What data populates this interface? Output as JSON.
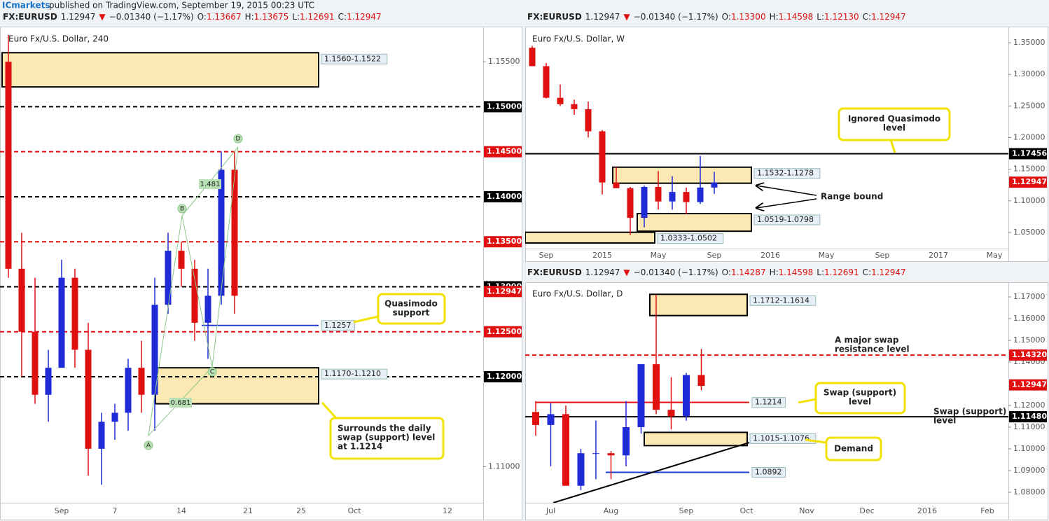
{
  "publisher": {
    "brand": "ICmarkets",
    "text": "published on TradingView.com, September 19, 2015 00:23 UTC"
  },
  "chart_data": [
    {
      "type": "candlestick",
      "title": "Euro Fx/U.S. Dollar, 240",
      "header": {
        "symbol": "FX:EURUSD",
        "last": "1.12947",
        "arrow": "▼",
        "change": "−0.01340 (−1.17%)",
        "ohlc": [
          {
            "k": "O:",
            "v": "1.13667"
          },
          {
            "k": "H:",
            "v": "1.13675"
          },
          {
            "k": "L:",
            "v": "1.12691"
          },
          {
            "k": "C:",
            "v": "1.12947"
          }
        ]
      },
      "up_color": "#1f2bd6",
      "down_color": "#e01010",
      "categories": [
        null,
        null,
        null,
        null,
        "Sep",
        null,
        null,
        null,
        "7",
        null,
        null,
        null,
        null,
        "14",
        null,
        null,
        null,
        null,
        "21",
        null,
        null,
        null,
        "25",
        null,
        null,
        null,
        "Oct",
        null,
        null,
        null,
        null,
        null,
        null,
        "12"
      ],
      "open": [
        1.155,
        1.132,
        1.125,
        1.118,
        1.121,
        1.131,
        1.123,
        1.112,
        1.115,
        1.116,
        1.121,
        1.118,
        1.128,
        1.134,
        1.132,
        1.126,
        1.129,
        1.143,
        null,
        null,
        null,
        null,
        null,
        null,
        null,
        null,
        null,
        null,
        null,
        null,
        null,
        null,
        null,
        null
      ],
      "high": [
        1.158,
        1.136,
        1.131,
        1.123,
        1.133,
        1.132,
        1.126,
        1.116,
        1.117,
        1.122,
        1.124,
        1.131,
        1.136,
        1.135,
        1.133,
        1.132,
        1.145,
        1.145,
        null,
        null,
        null,
        null,
        null,
        null,
        null,
        null,
        null,
        null,
        null,
        null,
        null,
        null,
        null,
        null
      ],
      "low": [
        1.131,
        1.12,
        1.117,
        1.115,
        1.121,
        1.121,
        1.109,
        1.108,
        1.113,
        1.114,
        1.116,
        1.114,
        1.127,
        1.13,
        1.124,
        1.122,
        1.128,
        1.127,
        null,
        null,
        null,
        null,
        null,
        null,
        null,
        null,
        null,
        null,
        null,
        null,
        null,
        null,
        null,
        null
      ],
      "close": [
        1.132,
        1.125,
        1.118,
        1.121,
        1.131,
        1.123,
        1.112,
        1.115,
        1.116,
        1.121,
        1.118,
        1.128,
        1.134,
        1.132,
        1.126,
        1.129,
        1.143,
        1.129,
        null,
        null,
        null,
        null,
        null,
        null,
        null,
        null,
        null,
        null,
        null,
        null,
        null,
        null,
        null,
        null
      ],
      "ylim": [
        1.106,
        1.1589
      ],
      "yticks": [
        {
          "value": 1.155,
          "label": "1.15500"
        },
        {
          "value": 1.11,
          "label": "1.11000"
        }
      ],
      "levels": [
        {
          "value": 1.15,
          "label": "1.15000",
          "color": "#000000",
          "style": "dash"
        },
        {
          "value": 1.145,
          "label": "1.14500",
          "color": "#e01010",
          "style": "dash"
        },
        {
          "value": 1.14,
          "label": "1.14000",
          "color": "#000000",
          "style": "dash"
        },
        {
          "value": 1.135,
          "label": "1.13500",
          "color": "#e01010",
          "style": "dash"
        },
        {
          "value": 1.13,
          "label": "1.13000",
          "color": "#000000",
          "style": "dash"
        },
        {
          "value": 1.12947,
          "label": "1.12947",
          "color": "#e01010",
          "style": "none"
        },
        {
          "value": 1.125,
          "label": "1.12500",
          "color": "#e01010",
          "style": "dash"
        },
        {
          "value": 1.12,
          "label": "1.12000",
          "color": "#000000",
          "style": "dash"
        }
      ],
      "zones": [
        {
          "label": "1.1560-1.1522",
          "top": 1.156,
          "bottom": 1.1522
        },
        {
          "label": "1.1170-1.1210",
          "top": 1.121,
          "bottom": 1.117
        }
      ],
      "lines": [
        {
          "value": 1.1257,
          "label": "1.1257",
          "color": "#1f3fd0"
        }
      ],
      "pattern": {
        "points": [
          "A",
          "B",
          "C",
          "D"
        ],
        "ratios": [
          "1.481",
          "0.681"
        ]
      },
      "annotations": [
        {
          "lines": [
            "Quasimodo",
            "support"
          ]
        },
        {
          "lines": [
            "Surrounds the daily",
            "swap (support) level",
            "at 1.1214"
          ]
        }
      ]
    },
    {
      "type": "candlestick",
      "title": "Euro Fx/U.S. Dollar, W",
      "header": {
        "symbol": "FX:EURUSD",
        "last": "1.12947",
        "arrow": "▼",
        "change": "−0.01340 (−1.17%)",
        "ohlc": [
          {
            "k": "O:",
            "v": "1.13300"
          },
          {
            "k": "H:",
            "v": "1.14598"
          },
          {
            "k": "L:",
            "v": "1.12130"
          },
          {
            "k": "C:",
            "v": "1.12947"
          }
        ]
      },
      "up_color": "#1f2bd6",
      "down_color": "#e01010",
      "categories": [
        null,
        "Sep",
        null,
        null,
        null,
        "2015",
        null,
        null,
        null,
        "May",
        null,
        null,
        null,
        "Sep",
        null,
        null,
        null,
        "2016",
        null,
        null,
        null,
        "May",
        null,
        null,
        null,
        "Sep",
        null,
        null,
        null,
        "2017",
        null,
        null,
        null,
        "May",
        null
      ],
      "open": [
        1.342,
        1.313,
        1.263,
        1.253,
        1.245,
        1.21,
        1.129,
        1.12,
        1.073,
        1.122,
        1.099,
        1.114,
        1.098,
        1.121,
        null,
        null,
        null,
        null,
        null,
        null,
        null,
        null,
        null,
        null,
        null,
        null,
        null,
        null,
        null,
        null,
        null,
        null,
        null,
        null,
        null
      ],
      "high": [
        1.345,
        1.318,
        1.284,
        1.26,
        1.257,
        1.212,
        1.153,
        1.122,
        1.124,
        1.147,
        1.139,
        1.121,
        1.171,
        1.146,
        null,
        null,
        null,
        null,
        null,
        null,
        null,
        null,
        null,
        null,
        null,
        null,
        null,
        null,
        null,
        null,
        null,
        null,
        null,
        null,
        null
      ],
      "low": [
        1.313,
        1.262,
        1.25,
        1.236,
        1.2,
        1.11,
        1.12,
        1.046,
        1.058,
        1.086,
        1.086,
        1.079,
        1.095,
        1.111,
        null,
        null,
        null,
        null,
        null,
        null,
        null,
        null,
        null,
        null,
        null,
        null,
        null,
        null,
        null,
        null,
        null,
        null,
        null,
        null,
        null
      ],
      "close": [
        1.313,
        1.263,
        1.253,
        1.245,
        1.21,
        1.129,
        1.12,
        1.073,
        1.122,
        1.099,
        1.114,
        1.098,
        1.121,
        1.129,
        null,
        null,
        null,
        null,
        null,
        null,
        null,
        null,
        null,
        null,
        null,
        null,
        null,
        null,
        null,
        null,
        null,
        null,
        null,
        null,
        null
      ],
      "ylim": [
        1.0244,
        1.3756
      ],
      "yticks": [
        {
          "value": 1.35,
          "label": "1.35000"
        },
        {
          "value": 1.3,
          "label": "1.30000"
        },
        {
          "value": 1.25,
          "label": "1.25000"
        },
        {
          "value": 1.2,
          "label": "1.20000"
        },
        {
          "value": 1.15,
          "label": "1.15000"
        },
        {
          "value": 1.1,
          "label": "1.10000"
        },
        {
          "value": 1.05,
          "label": "1.05000"
        }
      ],
      "levels": [
        {
          "value": 1.17456,
          "label": "1.17456",
          "color": "#000000",
          "style": "solid"
        },
        {
          "value": 1.12947,
          "label": "1.12947",
          "color": "#e01010",
          "style": "none"
        }
      ],
      "zones": [
        {
          "label": "1.1532-1.1278",
          "top": 1.1532,
          "bottom": 1.1278
        },
        {
          "label": "1.0519-1.0798",
          "top": 1.0798,
          "bottom": 1.0519
        },
        {
          "label": "1.0333-1.0502",
          "top": 1.0502,
          "bottom": 1.0333
        }
      ],
      "lines": [],
      "annotations": [
        {
          "lines": [
            "Ignored Quasimodo",
            "level"
          ]
        },
        {
          "lines": [
            "Range bound"
          ]
        }
      ]
    },
    {
      "type": "candlestick",
      "title": "Euro Fx/U.S. Dollar, D",
      "header": {
        "symbol": "FX:EURUSD",
        "last": "1.12947",
        "arrow": "▼",
        "change": "−0.01340 (−1.17%)",
        "ohlc": [
          {
            "k": "O:",
            "v": "1.14287"
          },
          {
            "k": "H:",
            "v": "1.14598"
          },
          {
            "k": "L:",
            "v": "1.12691"
          },
          {
            "k": "C:",
            "v": "1.12947"
          }
        ]
      },
      "up_color": "#1f2bd6",
      "down_color": "#e01010",
      "categories": [
        null,
        "Jul",
        null,
        null,
        null,
        "Aug",
        null,
        null,
        null,
        null,
        "Sep",
        null,
        null,
        null,
        "Oct",
        null,
        null,
        null,
        "Nov",
        null,
        null,
        null,
        "Dec",
        null,
        null,
        null,
        "2016",
        null,
        null,
        null,
        "Feb",
        null
      ],
      "open": [
        1.117,
        1.111,
        1.116,
        1.083,
        1.098,
        1.098,
        1.097,
        1.11,
        1.139,
        1.118,
        1.115,
        1.134,
        null,
        null,
        null,
        null,
        null,
        null,
        null,
        null,
        null,
        null,
        null,
        null,
        null,
        null,
        null,
        null,
        null,
        null,
        null,
        null
      ],
      "high": [
        1.122,
        1.121,
        1.12,
        1.1,
        1.113,
        1.099,
        1.122,
        1.139,
        1.171,
        1.133,
        1.135,
        1.146,
        null,
        null,
        null,
        null,
        null,
        null,
        null,
        null,
        null,
        null,
        null,
        null,
        null,
        null,
        null,
        null,
        null,
        null,
        null,
        null
      ],
      "low": [
        1.106,
        1.092,
        1.083,
        1.081,
        1.086,
        1.086,
        1.092,
        1.107,
        1.116,
        1.109,
        1.113,
        1.127,
        null,
        null,
        null,
        null,
        null,
        null,
        null,
        null,
        null,
        null,
        null,
        null,
        null,
        null,
        null,
        null,
        null,
        null,
        null,
        null
      ],
      "close": [
        1.111,
        1.116,
        1.083,
        1.098,
        1.098,
        1.097,
        1.11,
        1.139,
        1.118,
        1.115,
        1.134,
        1.129,
        null,
        null,
        null,
        null,
        null,
        null,
        null,
        null,
        null,
        null,
        null,
        null,
        null,
        null,
        null,
        null,
        null,
        null,
        null,
        null
      ],
      "ylim": [
        1.07516,
        1.17645
      ],
      "yticks": [
        {
          "value": 1.17,
          "label": "1.17000"
        },
        {
          "value": 1.16,
          "label": "1.16000"
        },
        {
          "value": 1.15,
          "label": "1.15000"
        },
        {
          "value": 1.14,
          "label": "1.14000"
        },
        {
          "value": 1.12,
          "label": "1.12000"
        },
        {
          "value": 1.11,
          "label": "1.11000"
        },
        {
          "value": 1.1,
          "label": "1.10000"
        },
        {
          "value": 1.09,
          "label": "1.09000"
        },
        {
          "value": 1.08,
          "label": "1.08000"
        }
      ],
      "levels": [
        {
          "value": 1.1432,
          "label": "1.14320",
          "color": "#e01010",
          "style": "dash"
        },
        {
          "value": 1.12947,
          "label": "1.12947",
          "color": "#e01010",
          "style": "none"
        },
        {
          "value": 1.1148,
          "label": "1.11480",
          "color": "#000000",
          "style": "solid"
        }
      ],
      "zones": [
        {
          "label": "1.1712-1.1614",
          "top": 1.1712,
          "bottom": 1.1614
        },
        {
          "label": "1.1015-1.1076",
          "top": 1.1076,
          "bottom": 1.1015
        }
      ],
      "lines": [
        {
          "value": 1.1214,
          "label": "1.1214",
          "color": "#e01010"
        },
        {
          "value": 1.0892,
          "label": "1.0892",
          "color": "#1f3fd0"
        }
      ],
      "annotations": [
        {
          "lines": [
            "A major swap",
            "resistance level"
          ]
        },
        {
          "lines": [
            "Swap (support)",
            "level"
          ]
        },
        {
          "lines": [
            "Swap (support)",
            "level"
          ]
        },
        {
          "lines": [
            "Demand"
          ]
        }
      ]
    }
  ]
}
